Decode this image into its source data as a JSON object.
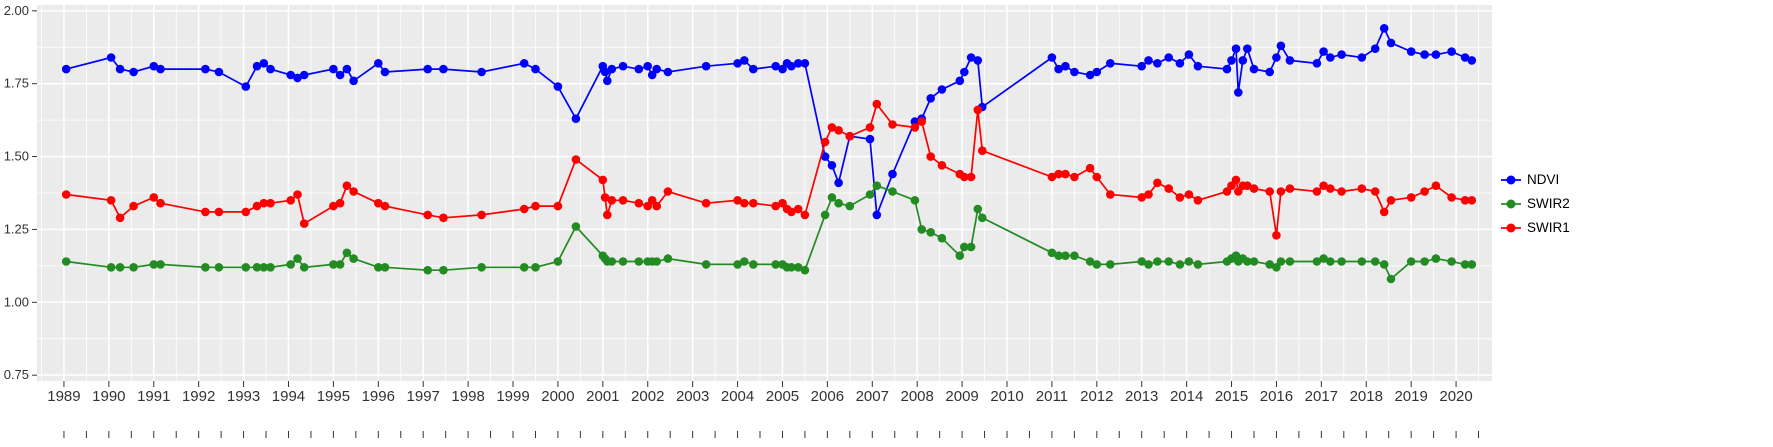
{
  "chart_data": {
    "type": "line",
    "title": "",
    "xlabel": "",
    "ylabel": "",
    "grid": true,
    "legend_position": "right",
    "panel_bg": "#EBEBEB",
    "grid_color": "#FFFFFF",
    "axis_text_color": "#333333",
    "tick_color": "#333333",
    "xlim": [
      1988.4,
      2020.8
    ],
    "ylim": [
      0.75,
      2.0
    ],
    "x_ticks": [
      1989,
      1990,
      1991,
      1992,
      1993,
      1994,
      1995,
      1996,
      1997,
      1998,
      1999,
      2000,
      2001,
      2002,
      2003,
      2004,
      2005,
      2006,
      2007,
      2008,
      2009,
      2010,
      2011,
      2012,
      2013,
      2014,
      2015,
      2016,
      2017,
      2018,
      2019,
      2020
    ],
    "y_ticks": [
      0.75,
      1.0,
      1.25,
      1.5,
      1.75,
      2.0
    ],
    "y_tick_labels": [
      "0.75",
      "1.00",
      "1.25",
      "1.50",
      "1.75",
      "2.00"
    ],
    "x": [
      1989.05,
      1990.05,
      1990.25,
      1990.55,
      1991.0,
      1991.15,
      1992.15,
      1992.45,
      1993.05,
      1993.3,
      1993.45,
      1993.6,
      1994.05,
      1994.2,
      1994.35,
      1995.0,
      1995.15,
      1995.3,
      1995.45,
      1996.0,
      1996.15,
      1997.1,
      1997.45,
      1998.3,
      1999.25,
      1999.5,
      2000.0,
      2000.4,
      2001.0,
      2001.05,
      2001.1,
      2001.2,
      2001.45,
      2001.8,
      2002.0,
      2002.1,
      2002.2,
      2002.45,
      2003.3,
      2004.0,
      2004.15,
      2004.35,
      2004.85,
      2005.0,
      2005.1,
      2005.2,
      2005.35,
      2005.5,
      2005.95,
      2006.1,
      2006.25,
      2006.5,
      2006.95,
      2007.1,
      2007.45,
      2007.95,
      2008.1,
      2008.3,
      2008.55,
      2008.95,
      2009.05,
      2009.2,
      2009.35,
      2009.45,
      2011.0,
      2011.15,
      2011.3,
      2011.5,
      2011.85,
      2012.0,
      2012.3,
      2013.0,
      2013.15,
      2013.35,
      2013.6,
      2013.85,
      2014.05,
      2014.25,
      2014.9,
      2015.0,
      2015.1,
      2015.15,
      2015.25,
      2015.35,
      2015.5,
      2015.85,
      2016.0,
      2016.1,
      2016.3,
      2016.9,
      2017.05,
      2017.2,
      2017.45,
      2017.9,
      2018.2,
      2018.4,
      2018.55,
      2019.0,
      2019.3,
      2019.55,
      2019.9,
      2020.2,
      2020.35
    ],
    "series": [
      {
        "name": "NDVI",
        "color": "#0000FF",
        "values": [
          1.8,
          1.84,
          1.8,
          1.79,
          1.81,
          1.8,
          1.8,
          1.79,
          1.74,
          1.81,
          1.82,
          1.8,
          1.78,
          1.77,
          1.78,
          1.8,
          1.78,
          1.8,
          1.76,
          1.82,
          1.79,
          1.8,
          1.8,
          1.79,
          1.82,
          1.8,
          1.74,
          1.63,
          1.81,
          1.79,
          1.76,
          1.8,
          1.81,
          1.8,
          1.81,
          1.78,
          1.8,
          1.79,
          1.81,
          1.82,
          1.83,
          1.8,
          1.81,
          1.8,
          1.82,
          1.81,
          1.82,
          1.82,
          1.5,
          1.47,
          1.41,
          1.57,
          1.56,
          1.3,
          1.44,
          1.62,
          1.63,
          1.7,
          1.73,
          1.76,
          1.79,
          1.84,
          1.83,
          1.67,
          1.84,
          1.8,
          1.81,
          1.79,
          1.78,
          1.79,
          1.82,
          1.81,
          1.83,
          1.82,
          1.84,
          1.82,
          1.85,
          1.81,
          1.8,
          1.83,
          1.87,
          1.72,
          1.83,
          1.87,
          1.8,
          1.79,
          1.84,
          1.88,
          1.83,
          1.82,
          1.86,
          1.84,
          1.85,
          1.84,
          1.87,
          1.94,
          1.89,
          1.86,
          1.85,
          1.85,
          1.86,
          1.84,
          1.83
        ]
      },
      {
        "name": "SWIR2",
        "color": "#228B22",
        "values": [
          1.14,
          1.12,
          1.12,
          1.12,
          1.13,
          1.13,
          1.12,
          1.12,
          1.12,
          1.12,
          1.12,
          1.12,
          1.13,
          1.15,
          1.12,
          1.13,
          1.13,
          1.17,
          1.15,
          1.12,
          1.12,
          1.11,
          1.11,
          1.12,
          1.12,
          1.12,
          1.14,
          1.26,
          1.16,
          1.15,
          1.14,
          1.14,
          1.14,
          1.14,
          1.14,
          1.14,
          1.14,
          1.15,
          1.13,
          1.13,
          1.14,
          1.13,
          1.13,
          1.13,
          1.12,
          1.12,
          1.12,
          1.11,
          1.3,
          1.36,
          1.34,
          1.33,
          1.37,
          1.4,
          1.38,
          1.35,
          1.25,
          1.24,
          1.22,
          1.16,
          1.19,
          1.19,
          1.32,
          1.29,
          1.17,
          1.16,
          1.16,
          1.16,
          1.14,
          1.13,
          1.13,
          1.14,
          1.13,
          1.14,
          1.14,
          1.13,
          1.14,
          1.13,
          1.14,
          1.15,
          1.16,
          1.14,
          1.15,
          1.14,
          1.14,
          1.13,
          1.12,
          1.14,
          1.14,
          1.14,
          1.15,
          1.14,
          1.14,
          1.14,
          1.14,
          1.13,
          1.08,
          1.14,
          1.14,
          1.15,
          1.14,
          1.13,
          1.13
        ]
      },
      {
        "name": "SWIR1",
        "color": "#FF0000",
        "values": [
          1.37,
          1.35,
          1.29,
          1.33,
          1.36,
          1.34,
          1.31,
          1.31,
          1.31,
          1.33,
          1.34,
          1.34,
          1.35,
          1.37,
          1.27,
          1.33,
          1.34,
          1.4,
          1.38,
          1.34,
          1.33,
          1.3,
          1.29,
          1.3,
          1.32,
          1.33,
          1.33,
          1.49,
          1.42,
          1.36,
          1.3,
          1.35,
          1.35,
          1.34,
          1.33,
          1.35,
          1.33,
          1.38,
          1.34,
          1.35,
          1.34,
          1.34,
          1.33,
          1.34,
          1.32,
          1.31,
          1.32,
          1.3,
          1.55,
          1.6,
          1.59,
          1.57,
          1.6,
          1.68,
          1.61,
          1.6,
          1.62,
          1.5,
          1.47,
          1.44,
          1.43,
          1.43,
          1.66,
          1.52,
          1.43,
          1.44,
          1.44,
          1.43,
          1.46,
          1.43,
          1.37,
          1.36,
          1.37,
          1.41,
          1.39,
          1.36,
          1.37,
          1.35,
          1.38,
          1.4,
          1.42,
          1.38,
          1.4,
          1.4,
          1.39,
          1.38,
          1.23,
          1.38,
          1.39,
          1.38,
          1.4,
          1.39,
          1.38,
          1.39,
          1.38,
          1.31,
          1.35,
          1.36,
          1.38,
          1.4,
          1.36,
          1.35,
          1.35
        ]
      }
    ],
    "legend": {
      "items": [
        {
          "label": "NDVI",
          "color": "#0000FF"
        },
        {
          "label": "SWIR2",
          "color": "#228B22"
        },
        {
          "label": "SWIR1",
          "color": "#FF0000"
        }
      ]
    }
  }
}
